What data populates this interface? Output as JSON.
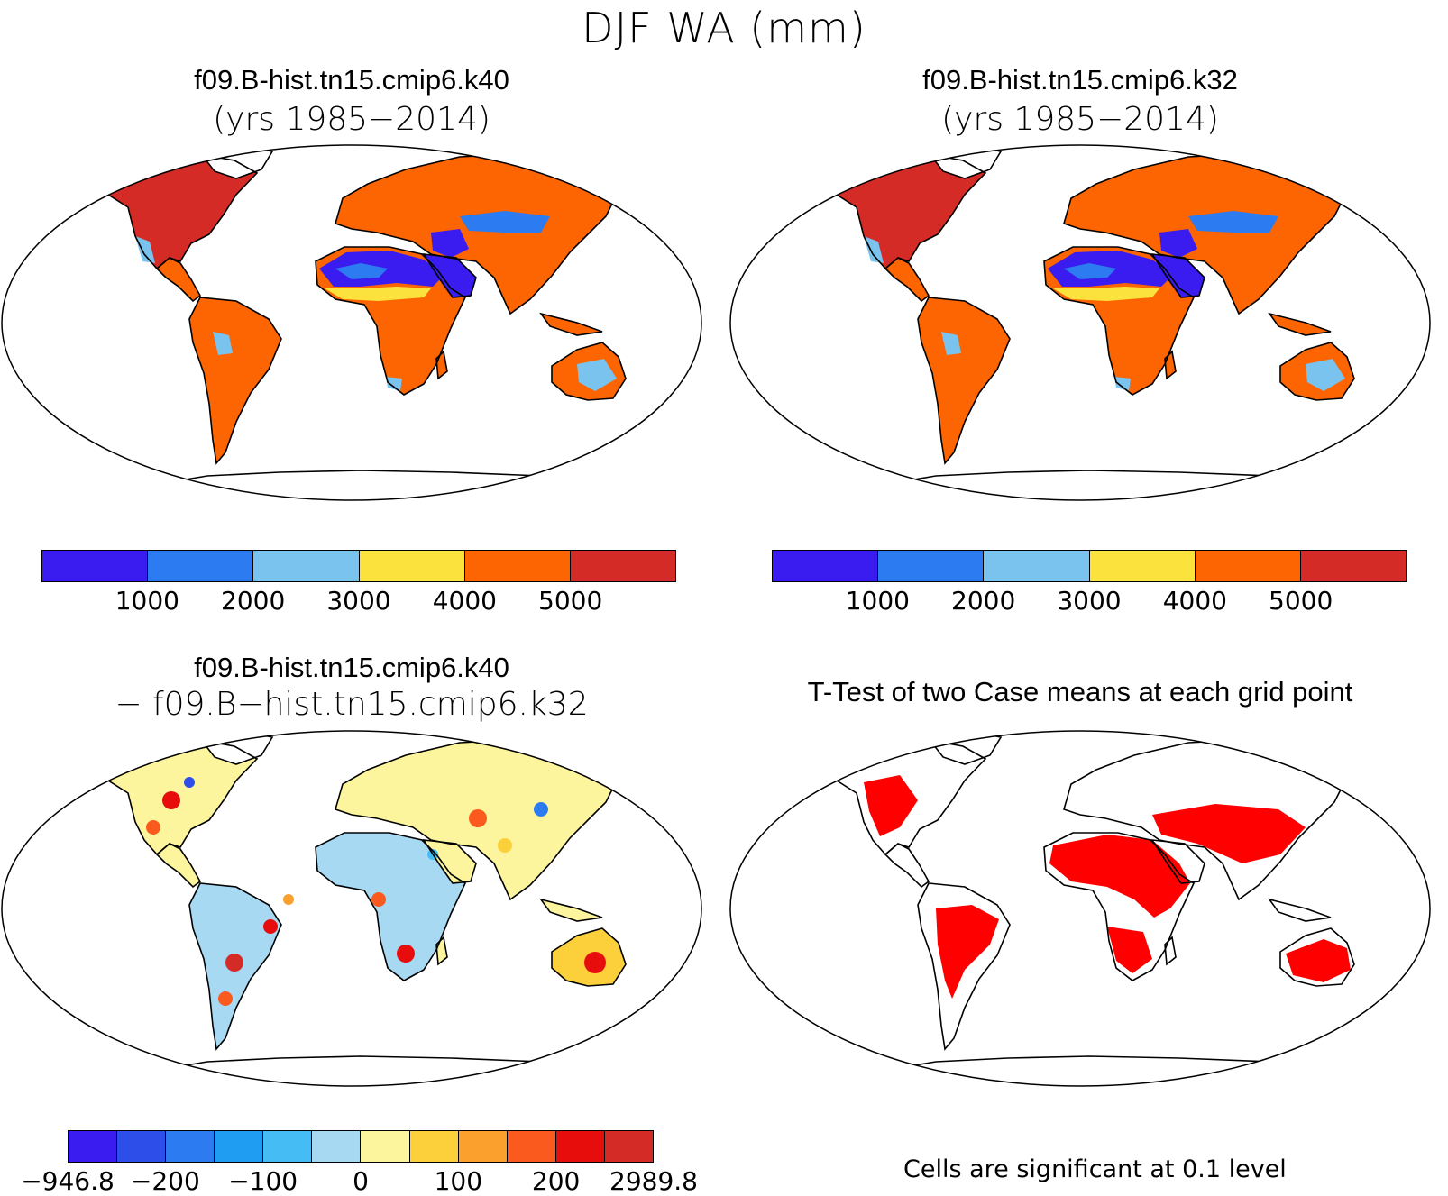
{
  "title": "DJF WA (mm)",
  "panels": {
    "top_left": {
      "title": "f09.B-hist.tn15.cmip6.k40",
      "subtitle": "(yrs 1985−2014)"
    },
    "top_right": {
      "title": "f09.B-hist.tn15.cmip6.k32",
      "subtitle": "(yrs 1985−2014)"
    },
    "bottom_left": {
      "title": "f09.B-hist.tn15.cmip6.k40",
      "subtitle": "− f09.B−hist.tn15.cmip6.k32"
    },
    "bottom_right": {
      "title": "T-Test of two Case means at each grid point",
      "note": "Cells are significant at 0.1 level"
    }
  },
  "colorbars": {
    "absolute": {
      "colors": [
        "#3a1cf0",
        "#2d7bf0",
        "#79c3ee",
        "#fbe23c",
        "#fc6501",
        "#d52b26"
      ],
      "labels": [
        "1000",
        "2000",
        "3000",
        "4000",
        "5000"
      ]
    },
    "difference": {
      "colors": [
        "#3a1cf0",
        "#2d4ee8",
        "#2d7bf0",
        "#1e9df2",
        "#45bdf4",
        "#a7d9f2",
        "#fcf59d",
        "#fbd03a",
        "#fba02d",
        "#fa5a1e",
        "#e80d0d",
        "#d52b26"
      ],
      "labels": [
        "−946.8",
        "−200",
        "−100",
        "0",
        "100",
        "200",
        "2989.8"
      ]
    }
  },
  "ttest_color": "#ff0000"
}
